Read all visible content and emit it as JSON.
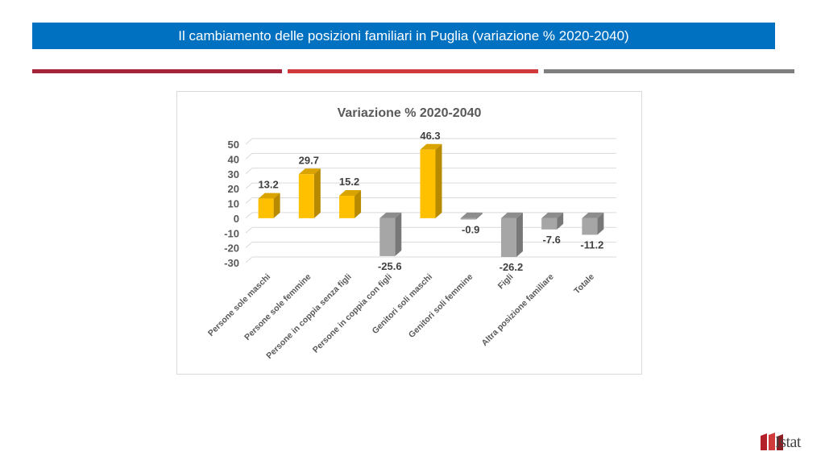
{
  "header": {
    "title": "Il cambiamento delle posizioni familiari in Puglia (variazione % 2020-2040)"
  },
  "brand": {
    "logo_text": "Istat"
  },
  "colors": {
    "title_bar": "#0070c0",
    "rule_1": "#a6243a",
    "rule_2": "#d13a3a",
    "rule_3": "#7f7f7f",
    "positive_bar": "#ffc000",
    "negative_bar": "#a6a6a6"
  },
  "chart_data": {
    "type": "bar",
    "title": "Variazione % 2020-2040",
    "xlabel": "",
    "ylabel": "",
    "ylim": [
      -30,
      50
    ],
    "yticks": [
      50,
      40,
      30,
      20,
      10,
      0,
      -10,
      -20,
      -30
    ],
    "grid": true,
    "style": "3d-columns",
    "categories": [
      "Persone sole maschi",
      "Persone sole femmine",
      "Persone in coppia senza figli",
      "Persone in coppia con figli",
      "Genitori soli maschi",
      "Genitori soli femmine",
      "Figli",
      "Altra posizione familiare",
      "Totale"
    ],
    "values": [
      13.2,
      29.7,
      15.2,
      -25.6,
      46.3,
      -0.9,
      -26.2,
      -7.6,
      -11.2
    ],
    "data_labels": [
      "13.2",
      "29.7",
      "15.2",
      "-25.6",
      "46.3",
      "-0.9",
      "-26.2",
      "-7.6",
      "-11.2"
    ]
  }
}
